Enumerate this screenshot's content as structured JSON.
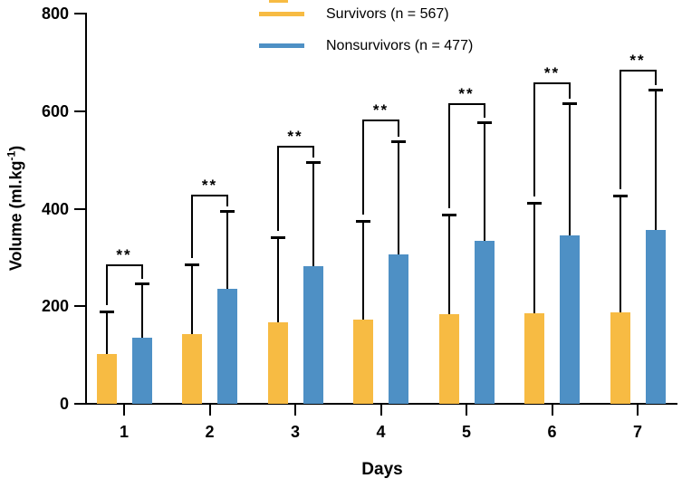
{
  "chart_data": {
    "type": "bar",
    "title": "",
    "xlabel": "Days",
    "ylabel": "Volume (ml.kg⁻¹)",
    "ylabel_parts": {
      "main": "Volume (ml.kg",
      "sup": "-1",
      "end": ")"
    },
    "ylim": [
      0,
      800
    ],
    "yticks": [
      0,
      200,
      400,
      600,
      800
    ],
    "categories": [
      "1",
      "2",
      "3",
      "4",
      "5",
      "6",
      "7"
    ],
    "grid": false,
    "legend_position": "top-center",
    "error_bar_style": "upper-sd-with-cap",
    "series": [
      {
        "name": "Survivors (n = 567)",
        "color": "#F7BB43",
        "means": [
          102,
          143,
          167,
          173,
          184,
          186,
          188
        ],
        "error_top": [
          189,
          286,
          341,
          375,
          388,
          412,
          427
        ]
      },
      {
        "name": "Nonsurvivors (n = 477)",
        "color": "#4E90C5",
        "means": [
          136,
          236,
          282,
          306,
          334,
          345,
          356
        ],
        "error_top": [
          247,
          395,
          496,
          538,
          578,
          616,
          645
        ]
      }
    ],
    "significance": {
      "label": "**",
      "comparison": "Survivors vs Nonsurvivors per day",
      "bracket_y": [
        284,
        427,
        527,
        581,
        614,
        657,
        683
      ]
    }
  }
}
